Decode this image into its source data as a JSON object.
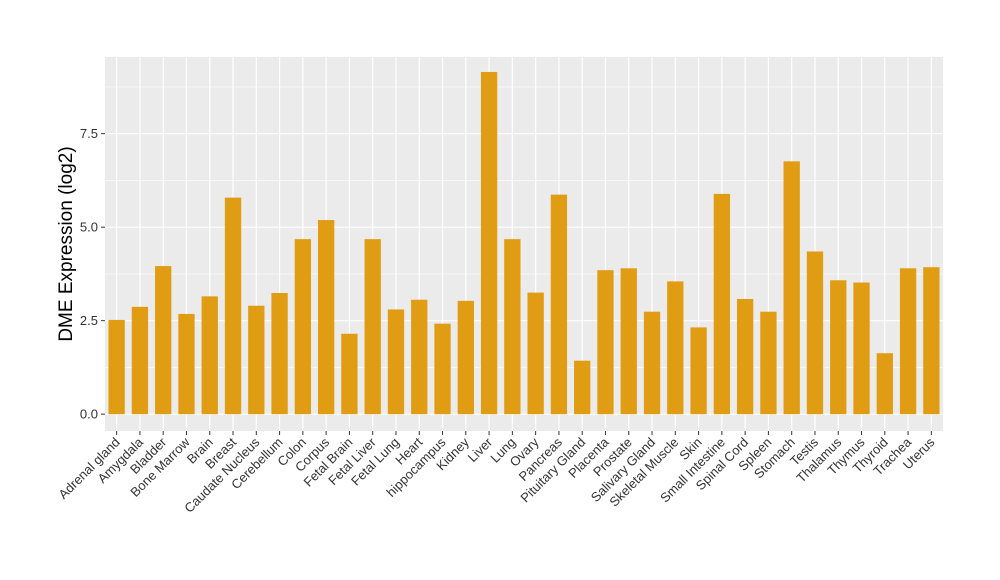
{
  "chart_data": {
    "type": "bar",
    "title": "",
    "xlabel": "",
    "ylabel": "DME Expression (log2)",
    "ylim": [
      -0.45,
      9.55
    ],
    "yticks": [
      0.0,
      2.5,
      5.0,
      7.5
    ],
    "ytick_labels": [
      "0.0",
      "2.5",
      "5.0",
      "7.5"
    ],
    "grid": true,
    "legend": "none",
    "bar_color": "#E09C12",
    "panel_color": "#EBEBEB",
    "grid_color": "#FFFFFF",
    "categories": [
      "Adrenal gland",
      "Amygdala",
      "Bladder",
      "Bone Marrow",
      "Brain",
      "Breast",
      "Caudate Nucleus",
      "Cerebellum",
      "Colon",
      "Corpus",
      "Fetal Brain",
      "Fetal Liver",
      "Fetal Lung",
      "Heart",
      "hippocampus",
      "Kidney",
      "Liver",
      "Lung",
      "Ovary",
      "Pancreas",
      "Pituitary Gland",
      "Placenta",
      "Prostate",
      "Salivary Gland",
      "Skeletal Muscle",
      "Skin",
      "Small Intestine",
      "Spinal Cord",
      "Spleen",
      "Stomach",
      "Testis",
      "Thalamus",
      "Thymus",
      "Thyroid",
      "Trachea",
      "Uterus"
    ],
    "values": [
      2.52,
      2.87,
      3.96,
      2.68,
      3.15,
      5.79,
      2.9,
      3.24,
      4.68,
      5.19,
      2.15,
      4.68,
      2.8,
      3.06,
      2.42,
      3.03,
      9.15,
      4.68,
      3.25,
      5.87,
      1.43,
      3.85,
      3.9,
      2.74,
      3.55,
      2.32,
      5.89,
      3.08,
      2.74,
      6.76,
      4.35,
      3.58,
      3.52,
      1.63,
      3.9,
      3.93
    ]
  }
}
